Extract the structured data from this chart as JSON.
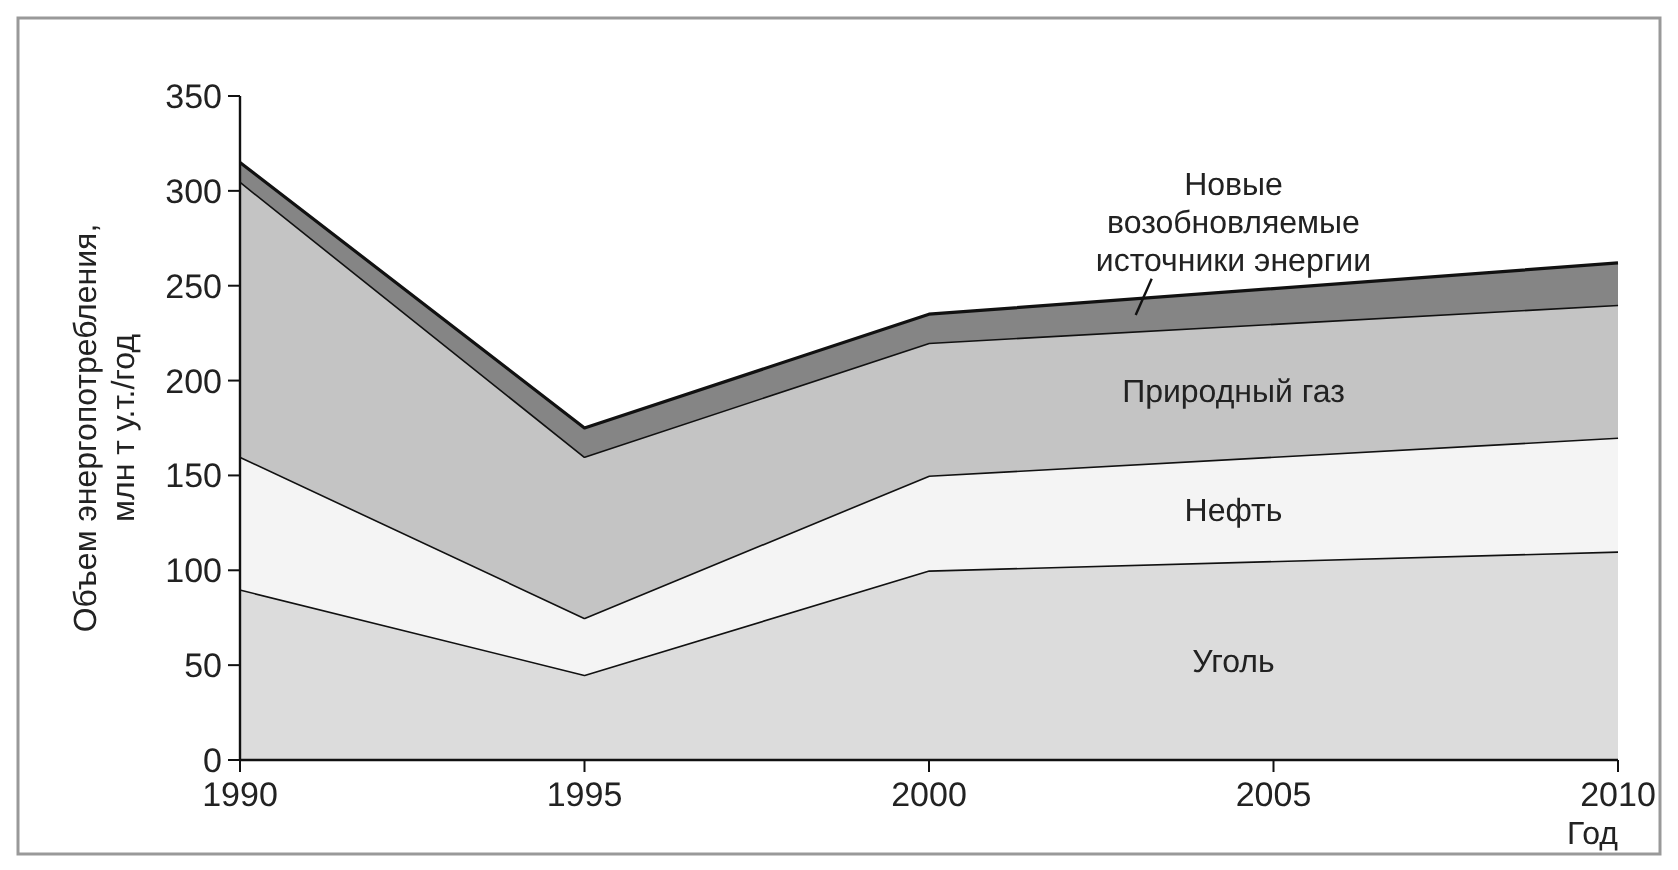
{
  "chart_data": {
    "type": "area",
    "stacked": true,
    "xlabel": "Год",
    "ylabel": "Объем энергопотребления, млн т у.т./год",
    "x": [
      1990,
      1995,
      2000,
      2010
    ],
    "xlim": [
      1990,
      2010
    ],
    "xticks": [
      1990,
      1995,
      2000,
      2005,
      2010
    ],
    "ylim": [
      0,
      350
    ],
    "yticks": [
      0,
      50,
      100,
      150,
      200,
      250,
      300,
      350
    ],
    "grid": false,
    "series": [
      {
        "name": "Уголь",
        "color": "#dcdcdc",
        "values": [
          90,
          45,
          100,
          110
        ]
      },
      {
        "name": "Нефть",
        "color": "#f4f4f4",
        "values": [
          70,
          30,
          50,
          60
        ]
      },
      {
        "name": "Природный газ",
        "color": "#c4c4c4",
        "values": [
          145,
          85,
          70,
          70
        ]
      },
      {
        "name": "Новые возобновляемые источники энергии",
        "color": "#858585",
        "values": [
          10,
          15,
          15,
          22
        ]
      }
    ]
  }
}
